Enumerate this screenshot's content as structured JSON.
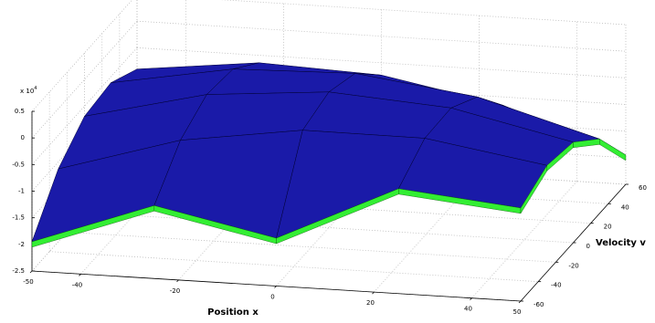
{
  "chart_data": {
    "type": "surface",
    "xlabel": "Position x",
    "ylabel": "Velocity v",
    "z_scale_base": "x 10",
    "z_scale_exponent": "4",
    "x": [
      -50,
      -25,
      0,
      25,
      50
    ],
    "y": [
      -60,
      -30,
      0,
      30,
      60
    ],
    "z": [
      [
        -1.95,
        -1.13,
        -1.6,
        -0.53,
        -0.75
      ],
      [
        -1.13,
        -0.45,
        -0.12,
        -0.13,
        -0.5
      ],
      [
        -0.69,
        -0.14,
        0.05,
        -0.11,
        -0.61
      ],
      [
        -0.61,
        -0.21,
        -0.15,
        -0.45,
        -1.1
      ],
      [
        -0.9,
        -0.64,
        -0.73,
        -1.16,
        -1.95
      ]
    ],
    "xlim": [
      -50,
      50
    ],
    "ylim": [
      -60,
      60
    ],
    "zlim": [
      -2.5,
      0.5
    ],
    "xticks": [
      -50,
      -40,
      -20,
      0,
      20,
      40,
      50
    ],
    "yticks": [
      -60,
      -40,
      -20,
      0,
      20,
      40,
      60
    ],
    "zticks": [
      -2.5,
      -2,
      -1.5,
      -1,
      -0.5,
      0,
      0.5
    ],
    "surface_color": "#1a1aa8",
    "mesh_color": "#000033",
    "underside_color": "#33ee33",
    "grid": true
  }
}
